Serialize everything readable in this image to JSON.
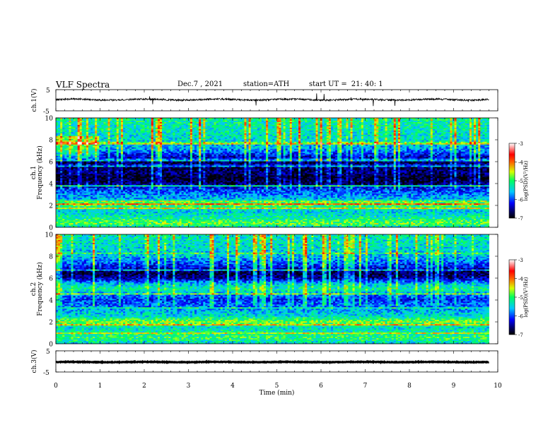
{
  "header": {
    "title": "VLF  Spectra",
    "date": "Dec.7  , 2021",
    "station_label": "station=",
    "station": "ATH",
    "start_label": "start  UT  =",
    "start_time": "21: 40: 1"
  },
  "colorbar": {
    "label": "log(PSD)(V²/Hz)",
    "ticks": [
      "-3",
      "-4",
      "-5",
      "-6",
      "-7"
    ]
  },
  "chart_data": [
    {
      "type": "line",
      "name": "ch1-waveform",
      "ylabel": "ch.1(V)",
      "ylim": [
        -5,
        5
      ],
      "ytick_labels": [
        "5",
        "-5"
      ],
      "xlim": [
        0,
        10
      ],
      "data_end_min": 9.8,
      "baseline": 0.3,
      "noise_amplitude": 0.8
    },
    {
      "type": "heatmap",
      "name": "ch1-spectrogram",
      "ylabel_top": "ch.1",
      "ylabel": "Frequency  (kHz)",
      "ylim": [
        0,
        10
      ],
      "ytick_labels": [
        "0",
        "2",
        "4",
        "6",
        "8",
        "10"
      ],
      "xlim": [
        0,
        10
      ],
      "color_range_log_psd": [
        -7,
        -3
      ],
      "band_profile_khz_to_logpsd": [
        [
          0,
          -5.4
        ],
        [
          0.3,
          -4.8
        ],
        [
          0.6,
          -5.0
        ],
        [
          1,
          -5.3
        ],
        [
          1.5,
          -5.5
        ],
        [
          1.9,
          -5.0
        ],
        [
          2.2,
          -4.8
        ],
        [
          2.6,
          -5.6
        ],
        [
          3,
          -5.8
        ],
        [
          3.5,
          -6.1
        ],
        [
          4,
          -6.7
        ],
        [
          4.6,
          -6.9
        ],
        [
          5,
          -6.6
        ],
        [
          5.5,
          -6.8
        ],
        [
          6,
          -6.7
        ],
        [
          6.5,
          -6.3
        ],
        [
          7,
          -5.8
        ],
        [
          8,
          -5.4
        ],
        [
          9,
          -5.3
        ],
        [
          10,
          -5.2
        ]
      ]
    },
    {
      "type": "heatmap",
      "name": "ch2-spectrogram",
      "ylabel_top": "ch.2",
      "ylabel": "Frequency  (kHz)",
      "ylim": [
        0,
        10
      ],
      "ytick_labels": [
        "0",
        "2",
        "4",
        "6",
        "8",
        "10"
      ],
      "xlim": [
        0,
        10
      ],
      "color_range_log_psd": [
        -7,
        -3
      ],
      "band_profile_khz_to_logpsd": [
        [
          0,
          -5.5
        ],
        [
          0.5,
          -5.0
        ],
        [
          1,
          -5.2
        ],
        [
          1.5,
          -5.4
        ],
        [
          2,
          -4.7
        ],
        [
          2.5,
          -5.4
        ],
        [
          3,
          -5.6
        ],
        [
          3.5,
          -5.9
        ],
        [
          4,
          -6.1
        ],
        [
          4.5,
          -5.8
        ],
        [
          5,
          -5.2
        ],
        [
          5.5,
          -5.6
        ],
        [
          6,
          -6.5
        ],
        [
          6.5,
          -6.8
        ],
        [
          7,
          -6.2
        ],
        [
          8,
          -5.6
        ],
        [
          9,
          -5.4
        ],
        [
          10,
          -5.3
        ]
      ]
    },
    {
      "type": "line",
      "name": "ch3-waveform",
      "ylabel": "ch.3(V)",
      "ylim": [
        -5,
        5
      ],
      "ytick_labels": [
        "5",
        "-5"
      ],
      "xlim": [
        0,
        10
      ],
      "data_end_min": 9.8,
      "baseline": -0.3,
      "noise_amplitude": 0.25
    }
  ],
  "xaxis": {
    "label": "Time  (min)",
    "ticks": [
      "0",
      "1",
      "2",
      "3",
      "4",
      "5",
      "6",
      "7",
      "8",
      "9",
      "10"
    ]
  }
}
